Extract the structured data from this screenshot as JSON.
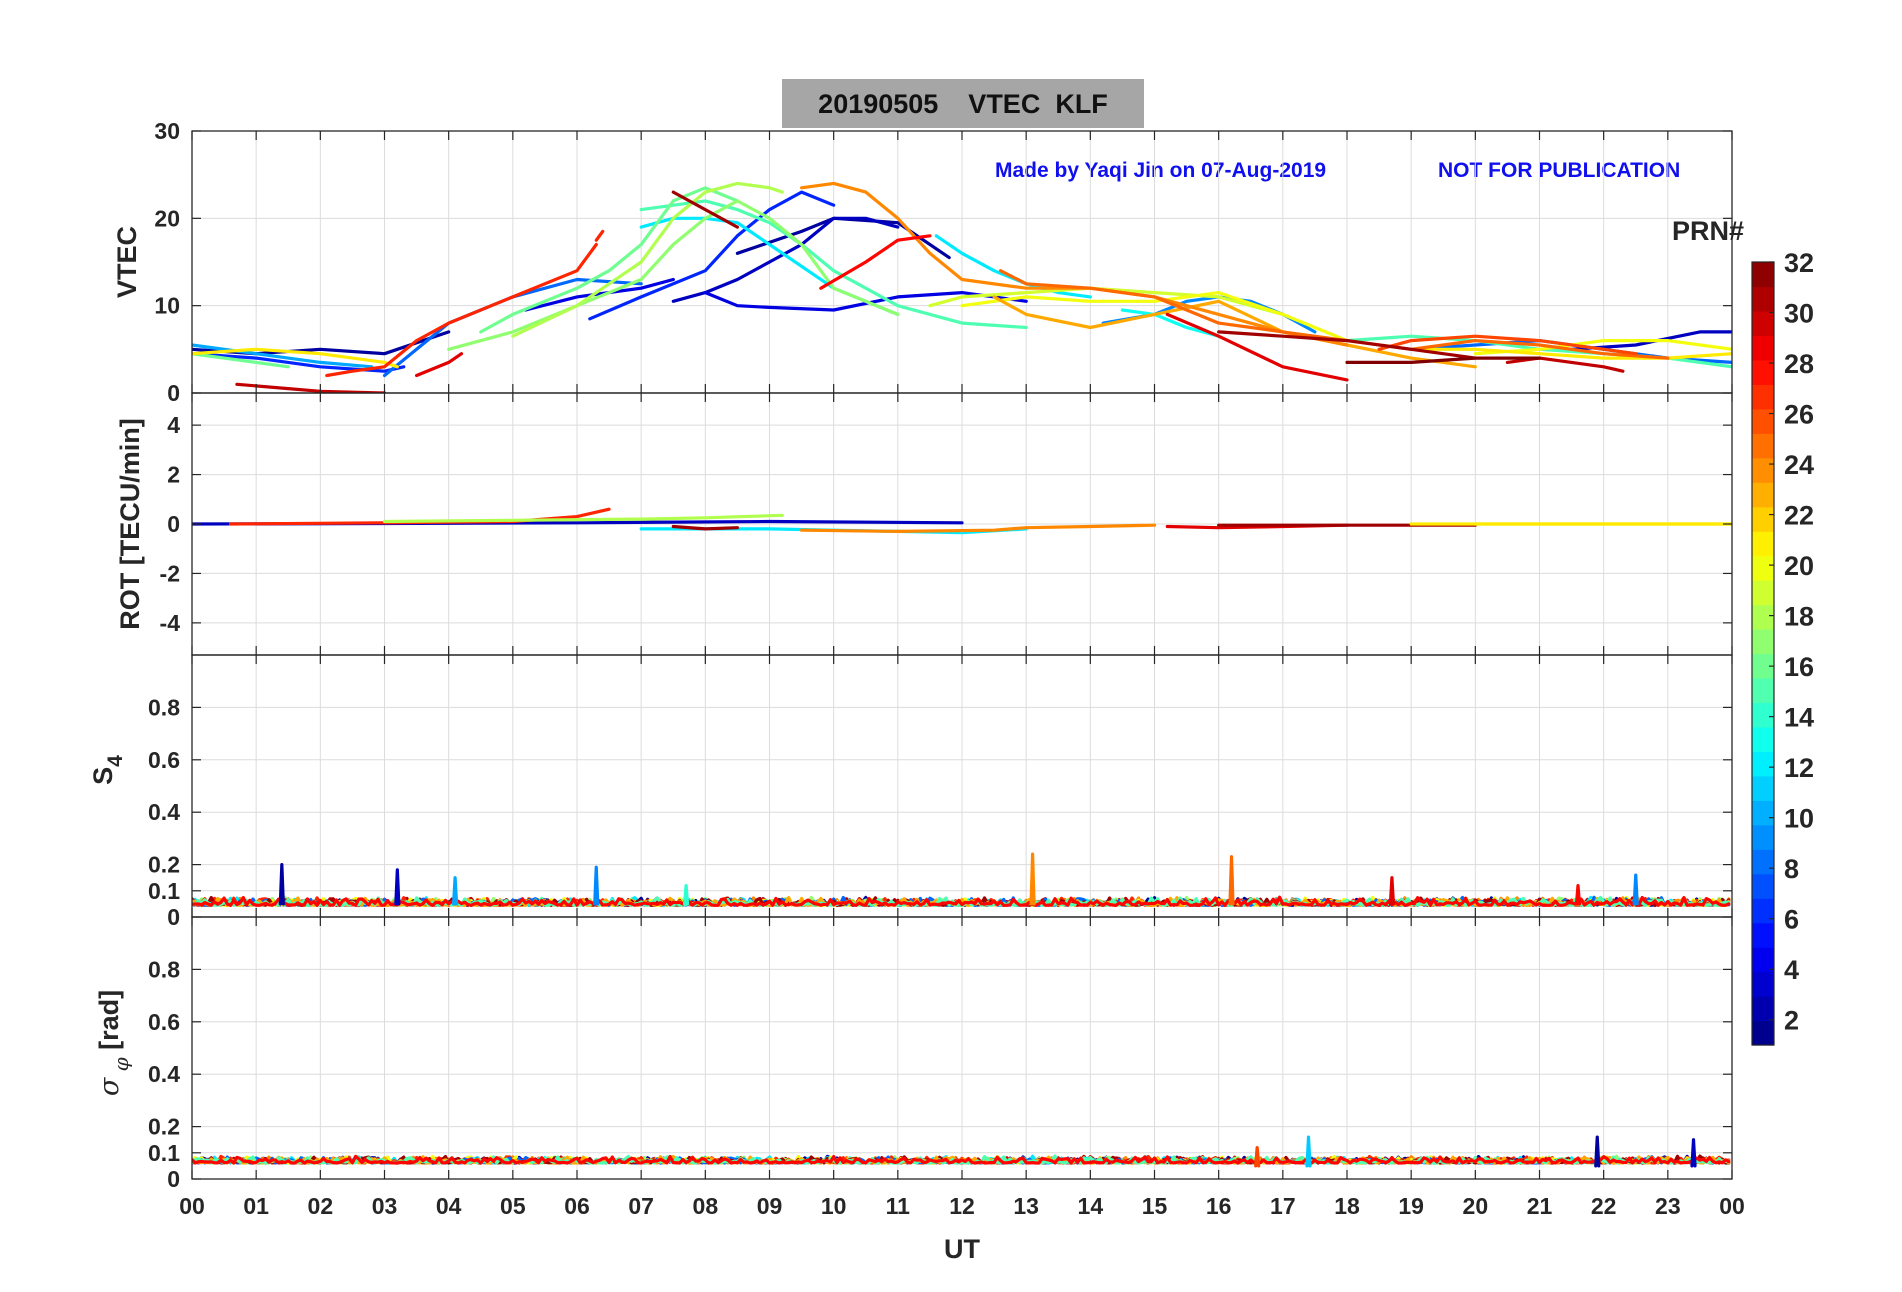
{
  "title": "20190505    VTEC  KLF",
  "annotation_left": "Made by Yaqi Jin on 07-Aug-2019",
  "annotation_right": "NOT FOR PUBLICATION",
  "annotation_color": "#1010ee",
  "xlabel": "UT",
  "colorbar": {
    "title": "PRN#",
    "range": [
      1,
      32
    ],
    "ticks": [
      2,
      4,
      6,
      8,
      10,
      12,
      14,
      16,
      18,
      20,
      22,
      24,
      26,
      28,
      30,
      32
    ],
    "colormap": "jet"
  },
  "chart_data": [
    {
      "type": "line",
      "ylabel": "VTEC",
      "xlim": [
        0,
        24
      ],
      "ylim": [
        0,
        30
      ],
      "yticks": [
        0,
        10,
        20,
        30
      ],
      "xtick_labels": [
        "00",
        "01",
        "02",
        "03",
        "04",
        "05",
        "06",
        "07",
        "08",
        "09",
        "10",
        "11",
        "12",
        "13",
        "14",
        "15",
        "16",
        "17",
        "18",
        "19",
        "20",
        "21",
        "22",
        "23",
        "00"
      ],
      "grid": true,
      "series": [
        {
          "prn": 2,
          "x": [
            0,
            1,
            2,
            3,
            4
          ],
          "y": [
            5,
            4.5,
            5,
            4.5,
            7
          ]
        },
        {
          "prn": 2,
          "x": [
            8.5,
            9.5,
            10,
            11,
            11.8
          ],
          "y": [
            16,
            18.5,
            20,
            19.5,
            15.5
          ]
        },
        {
          "prn": 3,
          "x": [
            7.5,
            8,
            8.5,
            9
          ],
          "y": [
            10.5,
            11.5,
            13,
            15
          ]
        },
        {
          "prn": 3,
          "x": [
            9,
            9.5,
            10,
            10.5,
            11
          ],
          "y": [
            15,
            17,
            20,
            20,
            19
          ]
        },
        {
          "prn": 3,
          "x": [
            21.5,
            22.5,
            23.5,
            24
          ],
          "y": [
            5,
            5.5,
            7,
            7
          ]
        },
        {
          "prn": 4,
          "x": [
            5.2,
            6,
            7,
            7.5
          ],
          "y": [
            9.5,
            11,
            12,
            13
          ]
        },
        {
          "prn": 4,
          "x": [
            8,
            8.5,
            9,
            10,
            11,
            12,
            13
          ],
          "y": [
            11.5,
            10,
            9.8,
            9.5,
            11,
            11.5,
            10.5
          ]
        },
        {
          "prn": 6,
          "x": [
            6.2,
            7,
            8,
            8.5,
            9,
            9.5,
            10
          ],
          "y": [
            8.5,
            11,
            14,
            18,
            21,
            23,
            21.5
          ]
        },
        {
          "prn": 6,
          "x": [
            0,
            1,
            2,
            3,
            3.3
          ],
          "y": [
            4.5,
            4,
            3,
            2.5,
            3
          ]
        },
        {
          "prn": 8,
          "x": [
            3,
            3.5,
            4,
            5,
            6,
            7
          ],
          "y": [
            2,
            5,
            8,
            11,
            13,
            12.5
          ]
        },
        {
          "prn": 8,
          "x": [
            19,
            20,
            21,
            22,
            23,
            24
          ],
          "y": [
            5,
            5.5,
            6,
            5,
            4,
            3.5
          ]
        },
        {
          "prn": 9,
          "x": [
            14.2,
            15,
            15.5,
            16,
            16.5,
            17,
            17.5
          ],
          "y": [
            8,
            9,
            10.5,
            11,
            10.5,
            9,
            7
          ]
        },
        {
          "prn": 10,
          "x": [
            0,
            1,
            2,
            2.8
          ],
          "y": [
            5.5,
            4.5,
            3.5,
            3
          ]
        },
        {
          "prn": 12,
          "x": [
            7,
            7.5,
            8,
            8.5,
            9,
            10,
            11
          ],
          "y": [
            19,
            20,
            20,
            19.5,
            17,
            12,
            9
          ]
        },
        {
          "prn": 12,
          "x": [
            11.6,
            12,
            12.5,
            13,
            13.5,
            14
          ],
          "y": [
            18,
            16,
            14,
            12.5,
            11.5,
            11
          ]
        },
        {
          "prn": 13,
          "x": [
            14.5,
            15,
            15.5,
            16
          ],
          "y": [
            9.5,
            9,
            7.5,
            6.5
          ]
        },
        {
          "prn": 15,
          "x": [
            7,
            7.5,
            8,
            8.5,
            9,
            9.5,
            10,
            11,
            12,
            13
          ],
          "y": [
            21,
            21.5,
            22,
            21,
            19.5,
            17,
            14,
            10,
            8,
            7.5
          ]
        },
        {
          "prn": 15,
          "x": [
            18,
            19,
            20,
            21,
            22,
            23,
            24
          ],
          "y": [
            6,
            6.5,
            6,
            5,
            4.5,
            4,
            3
          ]
        },
        {
          "prn": 16,
          "x": [
            4.5,
            5,
            6,
            6.5,
            7,
            7.5,
            8,
            8.5
          ],
          "y": [
            7,
            9,
            12,
            14,
            17,
            22,
            23.5,
            22
          ]
        },
        {
          "prn": 16,
          "x": [
            0,
            1,
            1.5
          ],
          "y": [
            4.5,
            3.5,
            3
          ]
        },
        {
          "prn": 17,
          "x": [
            4,
            5,
            6,
            7,
            7.5,
            8,
            8.5,
            9,
            9.5,
            10,
            11
          ],
          "y": [
            5,
            7,
            10,
            13,
            17,
            20,
            22,
            20,
            17,
            12,
            9
          ]
        },
        {
          "prn": 18,
          "x": [
            5,
            6,
            7,
            7.5,
            8,
            8.5,
            9,
            9.2
          ],
          "y": [
            6.5,
            10,
            15,
            20,
            23,
            24,
            23.5,
            23
          ]
        },
        {
          "prn": 19,
          "x": [
            11.5,
            12,
            13,
            14,
            15,
            16,
            17
          ],
          "y": [
            10,
            11,
            11.5,
            12,
            11.5,
            11,
            9
          ]
        },
        {
          "prn": 20,
          "x": [
            12,
            13,
            14,
            15,
            16,
            17,
            18
          ],
          "y": [
            10,
            11,
            10.5,
            10.5,
            11.5,
            9,
            6
          ]
        },
        {
          "prn": 20,
          "x": [
            20,
            21,
            22,
            23,
            24
          ],
          "y": [
            4.5,
            5,
            6,
            6,
            5
          ]
        },
        {
          "prn": 21,
          "x": [
            0,
            1,
            2,
            3,
            3.2
          ],
          "y": [
            4.5,
            5,
            4.5,
            3.5,
            3
          ]
        },
        {
          "prn": 21,
          "x": [
            19,
            20,
            21,
            22,
            23,
            24
          ],
          "y": [
            5,
            5,
            4.5,
            4,
            4,
            4.5
          ]
        },
        {
          "prn": 23,
          "x": [
            12.5,
            13,
            14,
            15,
            16,
            17,
            18,
            19,
            20
          ],
          "y": [
            11,
            9,
            7.5,
            9,
            10.5,
            7,
            5.5,
            4,
            3
          ]
        },
        {
          "prn": 24,
          "x": [
            9.5,
            10,
            10.5,
            11,
            11.5,
            12,
            13,
            14,
            15,
            16,
            17,
            18
          ],
          "y": [
            23.5,
            24,
            23,
            20,
            16,
            13,
            12,
            12,
            11,
            9,
            7,
            5.5
          ]
        },
        {
          "prn": 25,
          "x": [
            12.6,
            13,
            14,
            15,
            16,
            17,
            18,
            19,
            20,
            21,
            22,
            23
          ],
          "y": [
            14,
            12.5,
            12,
            11,
            8,
            7,
            6,
            5,
            6,
            5.5,
            4.5,
            4
          ]
        },
        {
          "prn": 26,
          "x": [
            18.5,
            19,
            20,
            21,
            22,
            22.5
          ],
          "y": [
            5,
            6,
            6.5,
            6,
            5,
            4.5
          ]
        },
        {
          "prn": 27,
          "x": [
            2.1,
            2.5,
            3,
            3.5,
            4,
            5,
            6,
            6.3
          ],
          "y": [
            2,
            2.5,
            3,
            6,
            8,
            11,
            14,
            17
          ]
        },
        {
          "prn": 27,
          "x": [
            6.3,
            6.4
          ],
          "y": [
            17.5,
            18.5
          ]
        },
        {
          "prn": 28,
          "x": [
            9.8,
            10.5,
            11,
            11.5
          ],
          "y": [
            12,
            15,
            17.5,
            18
          ]
        },
        {
          "prn": 29,
          "x": [
            15.2,
            16,
            17,
            18
          ],
          "y": [
            9,
            6.5,
            3,
            1.5
          ]
        },
        {
          "prn": 29,
          "x": [
            3.5,
            4,
            4.2
          ],
          "y": [
            2,
            3.5,
            4.5
          ]
        },
        {
          "prn": 30,
          "x": [
            0.7,
            1.5,
            2,
            3
          ],
          "y": [
            1,
            0.5,
            0.2,
            0
          ]
        },
        {
          "prn": 30,
          "x": [
            20.5,
            21,
            22,
            22.3
          ],
          "y": [
            3.5,
            4,
            3,
            2.5
          ]
        },
        {
          "prn": 31,
          "x": [
            7.5,
            8,
            8.5
          ],
          "y": [
            23,
            21,
            19
          ]
        },
        {
          "prn": 31,
          "x": [
            16,
            17,
            18,
            19,
            20
          ],
          "y": [
            7,
            6.5,
            6,
            5,
            4
          ]
        },
        {
          "prn": 32,
          "x": [
            18,
            19,
            20,
            21
          ],
          "y": [
            3.5,
            3.5,
            4,
            4
          ]
        }
      ]
    },
    {
      "type": "line",
      "ylabel": "ROT [TECU/min]",
      "xlim": [
        0,
        24
      ],
      "ylim": [
        -5.3,
        5.3
      ],
      "yticks": [
        -4,
        -2,
        0,
        2,
        4
      ],
      "grid": true,
      "series": [
        {
          "prn": 3,
          "x": [
            0,
            3,
            6,
            9,
            12
          ],
          "y": [
            0,
            0.02,
            0.05,
            0.1,
            0.05
          ]
        },
        {
          "prn": 27,
          "x": [
            0.6,
            3,
            5,
            6,
            6.5
          ],
          "y": [
            0,
            0.05,
            0.1,
            0.3,
            0.6
          ]
        },
        {
          "prn": 18,
          "x": [
            3,
            5,
            7,
            8,
            9.2
          ],
          "y": [
            0.1,
            0.15,
            0.2,
            0.25,
            0.35
          ]
        },
        {
          "prn": 12,
          "x": [
            7,
            8,
            9,
            10,
            11,
            12,
            13
          ],
          "y": [
            -0.2,
            -0.2,
            -0.2,
            -0.25,
            -0.3,
            -0.35,
            -0.2
          ]
        },
        {
          "prn": 31,
          "x": [
            7.5,
            8,
            8.5
          ],
          "y": [
            -0.1,
            -0.2,
            -0.15
          ]
        },
        {
          "prn": 24,
          "x": [
            9.5,
            11,
            12.5,
            13,
            14,
            15
          ],
          "y": [
            -0.25,
            -0.3,
            -0.25,
            -0.15,
            -0.1,
            -0.05
          ]
        },
        {
          "prn": 29,
          "x": [
            15.2,
            16,
            17,
            18
          ],
          "y": [
            -0.1,
            -0.15,
            -0.1,
            -0.05
          ]
        },
        {
          "prn": 31,
          "x": [
            16,
            18,
            20
          ],
          "y": [
            -0.05,
            -0.05,
            -0.05
          ]
        },
        {
          "prn": 20,
          "x": [
            20,
            22,
            24
          ],
          "y": [
            0,
            0,
            0
          ]
        },
        {
          "prn": 21,
          "x": [
            19,
            21,
            24
          ],
          "y": [
            0,
            0,
            0
          ]
        }
      ]
    },
    {
      "type": "line",
      "ylabel": "S4",
      "xlim": [
        0,
        24
      ],
      "ylim": [
        0,
        1
      ],
      "yticks": [
        0,
        0.1,
        0.2,
        0.4,
        0.6,
        0.8
      ],
      "grid": true,
      "baseline_range": [
        0.02,
        0.09
      ],
      "spikes": [
        {
          "prn": 2,
          "x": 1.4,
          "y": 0.2
        },
        {
          "prn": 3,
          "x": 3.2,
          "y": 0.18
        },
        {
          "prn": 10,
          "x": 4.1,
          "y": 0.15
        },
        {
          "prn": 9,
          "x": 6.3,
          "y": 0.19
        },
        {
          "prn": 14,
          "x": 7.7,
          "y": 0.12
        },
        {
          "prn": 24,
          "x": 13.1,
          "y": 0.24
        },
        {
          "prn": 25,
          "x": 16.2,
          "y": 0.23
        },
        {
          "prn": 29,
          "x": 18.7,
          "y": 0.15
        },
        {
          "prn": 28,
          "x": 21.6,
          "y": 0.12
        },
        {
          "prn": 9,
          "x": 22.5,
          "y": 0.16
        }
      ]
    },
    {
      "type": "line",
      "ylabel": "σ φ [rad]",
      "xlim": [
        0,
        24
      ],
      "ylim": [
        0,
        1
      ],
      "yticks": [
        0,
        0.1,
        0.2,
        0.4,
        0.6,
        0.8
      ],
      "grid": true,
      "baseline_range": [
        0.04,
        0.1
      ],
      "spikes": [
        {
          "prn": 11,
          "x": 17.4,
          "y": 0.16
        },
        {
          "prn": 2,
          "x": 21.9,
          "y": 0.16
        },
        {
          "prn": 3,
          "x": 23.4,
          "y": 0.15
        },
        {
          "prn": 26,
          "x": 16.6,
          "y": 0.12
        }
      ]
    }
  ]
}
